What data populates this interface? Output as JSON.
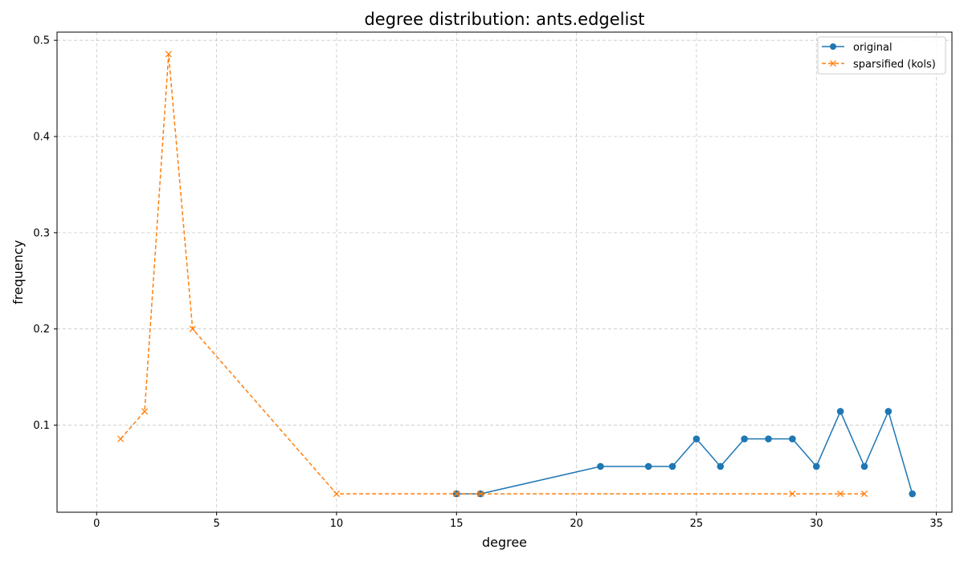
{
  "chart_data": {
    "type": "line",
    "title": "degree distribution: ants.edgelist",
    "xlabel": "degree",
    "ylabel": "frequency",
    "xlim": [
      -1.65,
      35.65
    ],
    "ylim": [
      0.0095,
      0.5085
    ],
    "xticks": [
      0,
      5,
      10,
      15,
      20,
      25,
      30,
      35
    ],
    "yticks": [
      0.1,
      0.2,
      0.3,
      0.4,
      0.5
    ],
    "grid": true,
    "legend_position": "top-right",
    "series": [
      {
        "name": "original",
        "color": "#1f77b4",
        "line_style": "solid",
        "marker": "circle",
        "points": [
          [
            15,
            0.0286
          ],
          [
            16,
            0.0286
          ],
          [
            21,
            0.0571
          ],
          [
            23,
            0.0571
          ],
          [
            24,
            0.0571
          ],
          [
            25,
            0.0857
          ],
          [
            26,
            0.0571
          ],
          [
            27,
            0.0857
          ],
          [
            28,
            0.0857
          ],
          [
            29,
            0.0857
          ],
          [
            30,
            0.0571
          ],
          [
            31,
            0.1143
          ],
          [
            32,
            0.0571
          ],
          [
            33,
            0.1143
          ],
          [
            34,
            0.0286
          ]
        ]
      },
      {
        "name": "sparsified (kols)",
        "color": "#ff7f0e",
        "line_style": "dashed",
        "marker": "x",
        "points": [
          [
            1,
            0.0857
          ],
          [
            2,
            0.1143
          ],
          [
            3,
            0.4857
          ],
          [
            4,
            0.2
          ],
          [
            10,
            0.0286
          ],
          [
            15,
            0.0286
          ],
          [
            16,
            0.0286
          ],
          [
            29,
            0.0286
          ],
          [
            31,
            0.0286
          ],
          [
            32,
            0.0286
          ]
        ]
      }
    ]
  }
}
